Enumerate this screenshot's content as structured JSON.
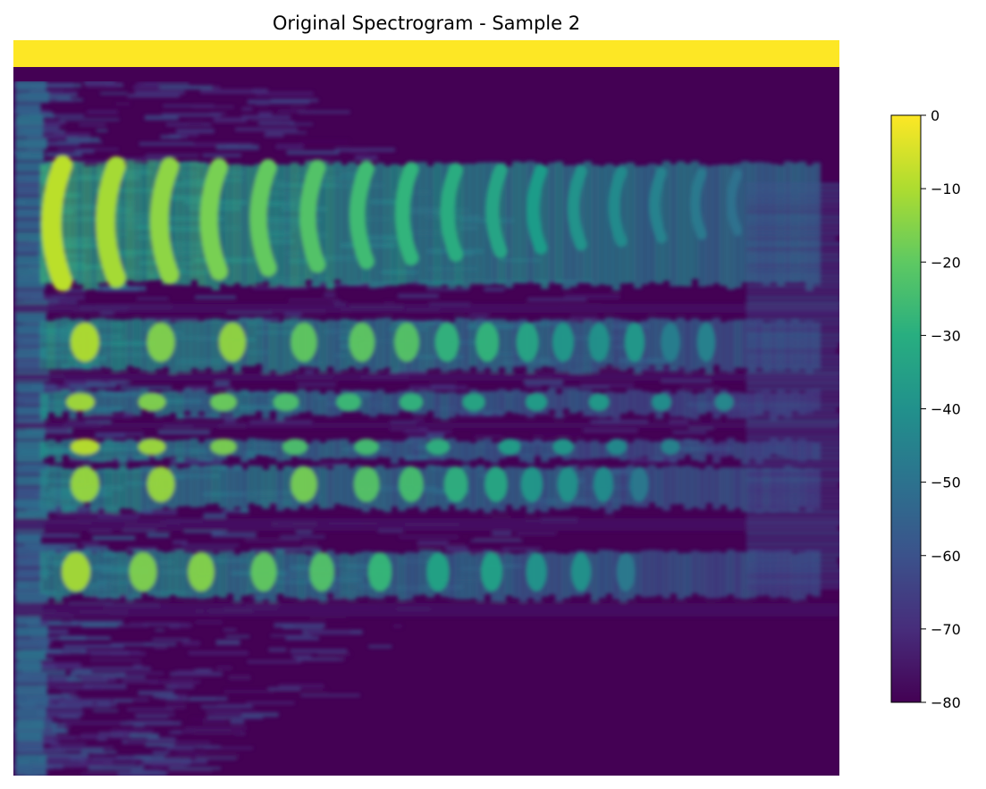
{
  "chart_data": {
    "type": "heatmap",
    "title": "Original Spectrogram - Sample 2",
    "xlabel": "",
    "ylabel": "",
    "axes_visible": false,
    "colormap": "viridis",
    "colorbar": {
      "range": [
        -80,
        0
      ],
      "ticks": [
        0,
        -10,
        -20,
        -30,
        -40,
        -50,
        -60,
        -70,
        -80
      ],
      "tick_labels": [
        "0",
        "−10",
        "−20",
        "−30",
        "−40",
        "−50",
        "−60",
        "−70",
        "−80"
      ],
      "placement": "right"
    },
    "value_range": [
      -80,
      0
    ],
    "colors": {
      "min": "#440154",
      "max": "#fde725"
    }
  }
}
